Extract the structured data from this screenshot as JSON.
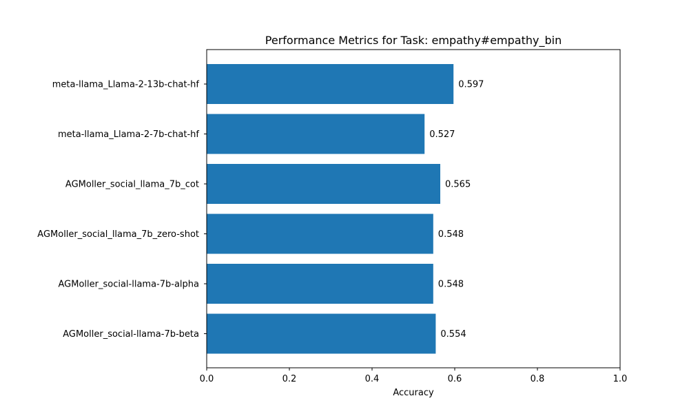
{
  "chart_data": {
    "type": "bar",
    "orientation": "horizontal",
    "title": "Performance Metrics for Task: empathy#empathy_bin",
    "xlabel": "Accuracy",
    "ylabel": "",
    "xlim": [
      0,
      1
    ],
    "xticks": [
      "0.0",
      "0.2",
      "0.4",
      "0.6",
      "0.8",
      "1.0"
    ],
    "grid": false,
    "bar_color": "#1f77b4",
    "categories": [
      "meta-llama_Llama-2-13b-chat-hf",
      "meta-llama_Llama-2-7b-chat-hf",
      "AGMoller_social_llama_7b_cot",
      "AGMoller_social_llama_7b_zero-shot",
      "AGMoller_social-llama-7b-alpha",
      "AGMoller_social-llama-7b-beta"
    ],
    "values": [
      0.597,
      0.527,
      0.565,
      0.548,
      0.548,
      0.554
    ],
    "value_labels": [
      "0.597",
      "0.527",
      "0.565",
      "0.548",
      "0.548",
      "0.554"
    ]
  }
}
